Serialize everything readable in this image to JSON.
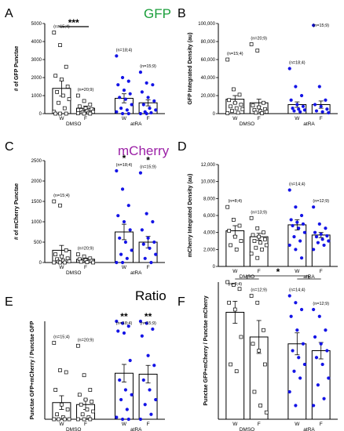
{
  "section_titles": [
    {
      "text": "GFP",
      "color": "#1a9e3a"
    },
    {
      "text": "mCherry",
      "color": "#9b1fa6"
    },
    {
      "text": "Ratio",
      "color": "#000000"
    }
  ],
  "colors": {
    "open": "#000000",
    "filled": "#1414e6"
  },
  "chart_data": [
    {
      "panel": "A",
      "type": "bar",
      "ylabel": "# of GFP Punctae",
      "ylim": [
        0,
        5000
      ],
      "yticks": [
        0,
        1000,
        2000,
        3000,
        4000,
        5000
      ],
      "ytick_labels": [
        "0",
        "1000",
        "2000",
        "3000",
        "4000",
        "5000"
      ],
      "categories": [
        "W",
        "F",
        "W",
        "F"
      ],
      "groups": [
        {
          "label": "DMSO",
          "from": 0,
          "to": 1
        },
        {
          "label": "atRA",
          "from": 2,
          "to": 3
        }
      ],
      "values": [
        1400,
        300,
        850,
        600
      ],
      "errors": [
        420,
        120,
        250,
        170
      ],
      "n_labels": [
        "(n=15;4)",
        "(n=20;9)",
        "(n=18;4)",
        "(n=15;9)"
      ],
      "significance": [
        {
          "from": 0,
          "to": 1,
          "label": "***"
        }
      ],
      "points": [
        [
          4500,
          3800,
          2600,
          2100,
          1900,
          1500,
          1200,
          1000,
          800,
          600,
          300,
          100,
          0,
          0,
          0
        ],
        [
          1000,
          700,
          500,
          400,
          300,
          250,
          200,
          150,
          100,
          80,
          50,
          20,
          0,
          0
        ],
        [
          3200,
          2000,
          1800,
          1600,
          1300,
          1100,
          900,
          800,
          500,
          300,
          200,
          100,
          0,
          0
        ],
        [
          2300,
          1700,
          1600,
          1200,
          900,
          700,
          500,
          300,
          200,
          100,
          50,
          0,
          0
        ]
      ]
    },
    {
      "panel": "B",
      "type": "bar",
      "ylabel": "GFP Integrated Density (au)",
      "ylim": [
        0,
        100000
      ],
      "yticks": [
        0,
        20000,
        40000,
        60000,
        80000,
        100000
      ],
      "ytick_labels": [
        "0",
        "20,000",
        "40,000",
        "60,000",
        "80,000",
        "100,000"
      ],
      "categories": [
        "W",
        "F",
        "W",
        "F"
      ],
      "groups": [
        {
          "label": "DMSO",
          "from": 0,
          "to": 1
        },
        {
          "label": "atRA",
          "from": 2,
          "to": 3
        }
      ],
      "values": [
        16000,
        12000,
        10000,
        10000
      ],
      "errors": [
        4000,
        4000,
        3000,
        4000
      ],
      "n_labels": [
        "(n=15;4)",
        "(n=20;9)",
        "(n=18;4)",
        "(n=15;9)"
      ],
      "significance": [],
      "points": [
        [
          60000,
          27000,
          21000,
          15000,
          12000,
          10000,
          8000,
          6000,
          5000,
          3000,
          1000,
          500
        ],
        [
          77000,
          70000,
          12000,
          9000,
          7000,
          5000,
          4000,
          3000,
          2000,
          1000,
          500
        ],
        [
          50000,
          30000,
          20000,
          15000,
          10000,
          8000,
          6000,
          5000,
          4000,
          3000,
          2000
        ],
        [
          98000,
          30000,
          15000,
          10000,
          8000,
          5000,
          3000,
          2000,
          1000
        ]
      ]
    },
    {
      "panel": "C",
      "type": "bar",
      "ylabel": "# of mCherry Punctae",
      "ylim": [
        0,
        2500
      ],
      "yticks": [
        0,
        500,
        1000,
        1500,
        2000,
        2500
      ],
      "ytick_labels": [
        "0",
        "500",
        "1000",
        "1500",
        "2000",
        "2500"
      ],
      "categories": [
        "W",
        "F",
        "W",
        "F"
      ],
      "groups": [
        {
          "label": "DMSO",
          "from": 0,
          "to": 1
        },
        {
          "label": "atRA",
          "from": 2,
          "to": 3
        }
      ],
      "values": [
        300,
        80,
        750,
        500
      ],
      "errors": [
        120,
        30,
        190,
        140
      ],
      "n_labels": [
        "(n=15;4)",
        "(n=20;9)",
        "(n=18;4)",
        "(n=15;9)"
      ],
      "significance": [
        {
          "bar": 2,
          "label": "*"
        },
        {
          "bar": 3,
          "label": "*"
        }
      ],
      "points": [
        [
          1500,
          1400,
          300,
          200,
          150,
          100,
          80,
          50,
          30,
          20,
          0,
          0,
          0
        ],
        [
          200,
          150,
          100,
          80,
          60,
          40,
          20,
          10,
          0
        ],
        [
          2250,
          1800,
          1400,
          1150,
          1000,
          800,
          600,
          500,
          300,
          200,
          100,
          0,
          0
        ],
        [
          2200,
          1200,
          1000,
          800,
          600,
          500,
          450,
          350,
          200,
          100,
          0
        ]
      ]
    },
    {
      "panel": "D",
      "type": "bar",
      "ylabel": "mCherry Integrated Density (au)",
      "ylim": [
        0,
        12000
      ],
      "yticks": [
        0,
        2000,
        4000,
        6000,
        8000,
        10000,
        12000
      ],
      "ytick_labels": [
        "0",
        "2,000",
        "4,000",
        "6,000",
        "8,000",
        "10,000",
        "12,000"
      ],
      "categories": [
        "W",
        "F",
        "W",
        "F"
      ],
      "groups": [
        {
          "label": "DMSO",
          "from": 0,
          "to": 1
        },
        {
          "label": "atRA",
          "from": 2,
          "to": 3
        }
      ],
      "values": [
        4200,
        3500,
        4900,
        3700
      ],
      "errors": [
        600,
        400,
        600,
        300
      ],
      "n_labels": [
        "(n=8;4)",
        "(n=13;9)",
        "(n=14;4)",
        "(n=12;9)"
      ],
      "significance": [],
      "points": [
        [
          7000,
          5500,
          4800,
          4200,
          3500,
          3000,
          2500,
          2000
        ],
        [
          5700,
          4500,
          4000,
          3700,
          3500,
          3200,
          3000,
          2800,
          2500,
          2200,
          2000,
          1500,
          1000
        ],
        [
          9000,
          7000,
          6000,
          5500,
          5200,
          5000,
          4800,
          4500,
          4000,
          3500,
          3000,
          2500,
          2000,
          1000
        ],
        [
          7000,
          5000,
          4500,
          4000,
          3800,
          3600,
          3500,
          3200,
          3000,
          2800,
          2500,
          2000
        ]
      ]
    },
    {
      "panel": "E",
      "type": "bar",
      "ylabel": "Punctae GFP+mCherry / Punctae GFP",
      "ylim": [
        0,
        1
      ],
      "yticks": [],
      "ytick_labels": [],
      "categories": [
        "W",
        "F",
        "W",
        "F"
      ],
      "groups": [
        {
          "label": "DMSO",
          "from": 0,
          "to": 1
        },
        {
          "label": "atRA",
          "from": 2,
          "to": 3
        }
      ],
      "values": [
        0.17,
        0.15,
        0.47,
        0.46
      ],
      "errors": [
        0.07,
        0.05,
        0.09,
        0.09
      ],
      "n_labels": [
        "(n=15;4)",
        "(n=20;9)",
        "(n=18;4)",
        "(n=15;9)"
      ],
      "significance": [
        {
          "bar": 2,
          "label": "**"
        },
        {
          "bar": 3,
          "label": "**"
        }
      ],
      "points": [
        [
          0.78,
          0.5,
          0.48,
          0.3,
          0.15,
          0.1,
          0.05,
          0.02,
          0,
          0,
          0,
          0
        ],
        [
          0.75,
          0.45,
          0.3,
          0.25,
          0.2,
          0.18,
          0.15,
          0.1,
          0.08,
          0.05,
          0.02,
          0,
          0,
          0
        ],
        [
          1.0,
          0.98,
          0.95,
          0.9,
          0.88,
          0.6,
          0.4,
          0.3,
          0.25,
          0.2,
          0.1,
          0.02,
          0,
          0
        ],
        [
          1.0,
          0.98,
          0.92,
          0.85,
          0.65,
          0.55,
          0.4,
          0.3,
          0.2,
          0.15,
          0.05,
          0
        ]
      ]
    },
    {
      "panel": "F",
      "type": "bar",
      "ylabel": "Punctae GFP+mCherry / Punctae mCherry",
      "ylim": [
        0,
        1
      ],
      "yticks": [],
      "ytick_labels": [],
      "categories": [
        "W",
        "F",
        "W",
        "F"
      ],
      "groups": [
        {
          "label": "DMSO",
          "from": 0,
          "to": 1
        },
        {
          "label": "atRA",
          "from": 2,
          "to": 3
        }
      ],
      "values": [
        0.78,
        0.6,
        0.55,
        0.5
      ],
      "errors": [
        0.08,
        0.12,
        0.08,
        0.06
      ],
      "n_labels": [
        "(n=8;4)",
        "(n=12;9)",
        "(n=14;4)",
        "(n=12;9)"
      ],
      "significance": [
        {
          "from_group": 0,
          "to_group": 1,
          "label": "*"
        }
      ],
      "points": [
        [
          1.0,
          0.98,
          0.95,
          0.85,
          0.8,
          0.6,
          0.4,
          0.35
        ],
        [
          0.9,
          0.85,
          0.65,
          0.55,
          0.5,
          0.4,
          0.2,
          0.1,
          0.05
        ],
        [
          0.9,
          0.85,
          0.8,
          0.75,
          0.65,
          0.55,
          0.5,
          0.45,
          0.4,
          0.35,
          0.3,
          0.2,
          0.1
        ],
        [
          0.8,
          0.75,
          0.65,
          0.6,
          0.55,
          0.5,
          0.45,
          0.4,
          0.3,
          0.25,
          0.15,
          0.1
        ]
      ]
    }
  ]
}
